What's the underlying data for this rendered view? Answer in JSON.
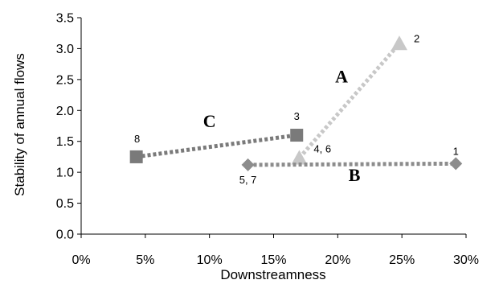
{
  "chart_data": {
    "type": "scatter",
    "xlabel": "Downstreamness",
    "ylabel": "Stability of annual flows",
    "xlim": [
      0,
      0.3
    ],
    "ylim": [
      0,
      3.5
    ],
    "x_ticks": [
      {
        "value": 0.0,
        "label": "0%"
      },
      {
        "value": 0.05,
        "label": "5%"
      },
      {
        "value": 0.1,
        "label": "10%"
      },
      {
        "value": 0.15,
        "label": "15%"
      },
      {
        "value": 0.2,
        "label": "20%"
      },
      {
        "value": 0.25,
        "label": "25%"
      },
      {
        "value": 0.3,
        "label": "30%"
      }
    ],
    "y_ticks": [
      {
        "value": 0.0,
        "label": "0.0"
      },
      {
        "value": 0.5,
        "label": "0.5"
      },
      {
        "value": 1.0,
        "label": "1.0"
      },
      {
        "value": 1.5,
        "label": "1.5"
      },
      {
        "value": 2.0,
        "label": "2.0"
      },
      {
        "value": 2.5,
        "label": "2.5"
      },
      {
        "value": 3.0,
        "label": "3.0"
      },
      {
        "value": 3.5,
        "label": "3.5"
      }
    ],
    "grid": false,
    "series": [
      {
        "name": "A",
        "marker": "triangle",
        "color": "#c8c8c8",
        "points": [
          {
            "x": 0.17,
            "y": 1.23,
            "label": "4, 6"
          },
          {
            "x": 0.248,
            "y": 3.08,
            "label": "2"
          }
        ]
      },
      {
        "name": "B",
        "marker": "diamond",
        "color": "#8c8c8c",
        "points": [
          {
            "x": 0.13,
            "y": 1.12,
            "label": "5, 7"
          },
          {
            "x": 0.292,
            "y": 1.14,
            "label": "1"
          }
        ]
      },
      {
        "name": "C",
        "marker": "square",
        "color": "#7a7a7a",
        "points": [
          {
            "x": 0.043,
            "y": 1.25,
            "label": "8"
          },
          {
            "x": 0.168,
            "y": 1.6,
            "label": "3"
          }
        ]
      }
    ]
  }
}
